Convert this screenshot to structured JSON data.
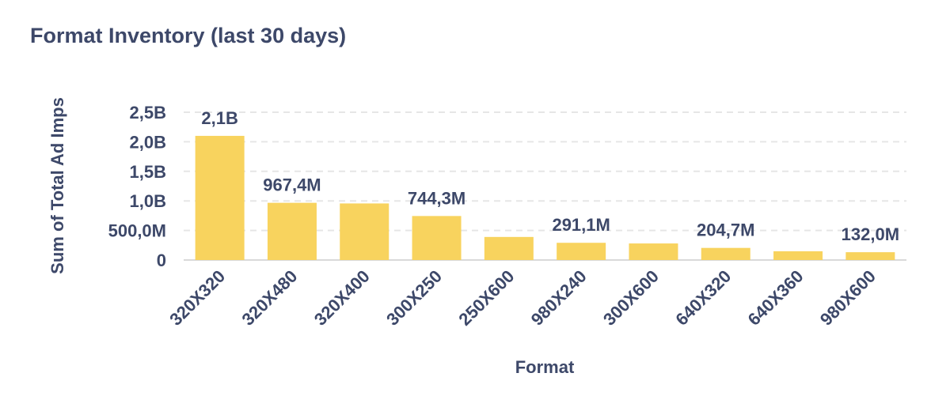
{
  "chart_data": {
    "type": "bar",
    "title": "Format Inventory (last 30 days)",
    "xlabel": "Format",
    "ylabel": "Sum of Total Ad Imps",
    "categories": [
      "320X320",
      "320X480",
      "320X400",
      "300X250",
      "250X600",
      "980X240",
      "300X600",
      "640X320",
      "640X360",
      "980X600"
    ],
    "values": [
      2100000000,
      967400000,
      957000000,
      744300000,
      390000000,
      291100000,
      280000000,
      204700000,
      148000000,
      132000000
    ],
    "data_labels": [
      "2,1B",
      "967,4M",
      "",
      "744,3M",
      "",
      "291,1M",
      "",
      "204,7M",
      "",
      "132,0M"
    ],
    "ylim": [
      0,
      2500000000
    ],
    "yticks": [
      0,
      500000000,
      1000000000,
      1500000000,
      2000000000,
      2500000000
    ],
    "ytick_labels": [
      "0",
      "500,0M",
      "1,0B",
      "1,5B",
      "2,0B",
      "2,5B"
    ],
    "grid": true,
    "bar_color": "#F8D35E",
    "text_color": "#3D4869"
  }
}
